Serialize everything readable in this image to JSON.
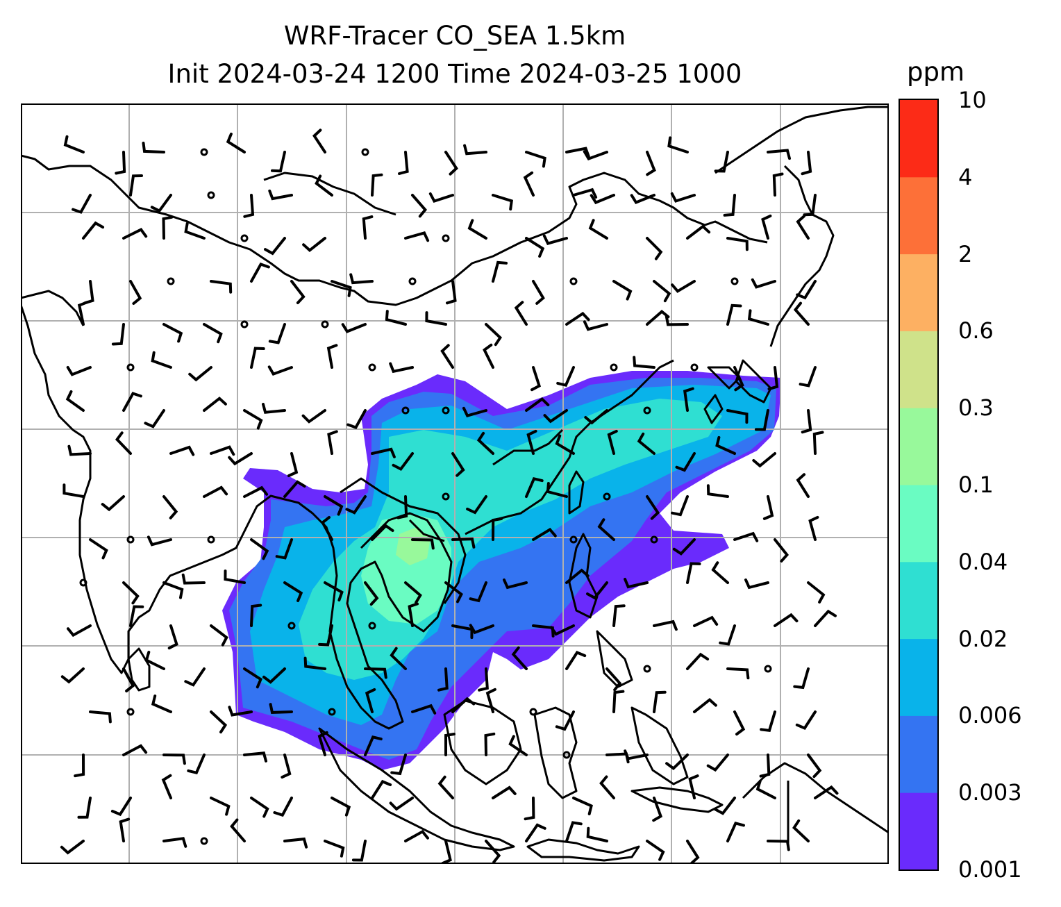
{
  "title": {
    "line1": "WRF-Tracer CO_SEA 1.5km",
    "line2": "Init 2024-03-24 1200 Time 2024-03-25 1000"
  },
  "colorbar": {
    "unit": "ppm",
    "levels": [
      "0.001",
      "0.003",
      "0.006",
      "0.02",
      "0.04",
      "0.1",
      "0.3",
      "0.6",
      "2",
      "4",
      "10"
    ],
    "colors": [
      "#6a2bfc",
      "#3474f2",
      "#09b3ea",
      "#2fdfd2",
      "#6afcc2",
      "#98f99b",
      "#cfe28a",
      "#fdb062",
      "#fd7038",
      "#fc2b17"
    ]
  },
  "map": {
    "gridlines": true,
    "coastlines": true,
    "overlays": [
      "wind-barbs",
      "tracer-concentration-fill"
    ]
  }
}
